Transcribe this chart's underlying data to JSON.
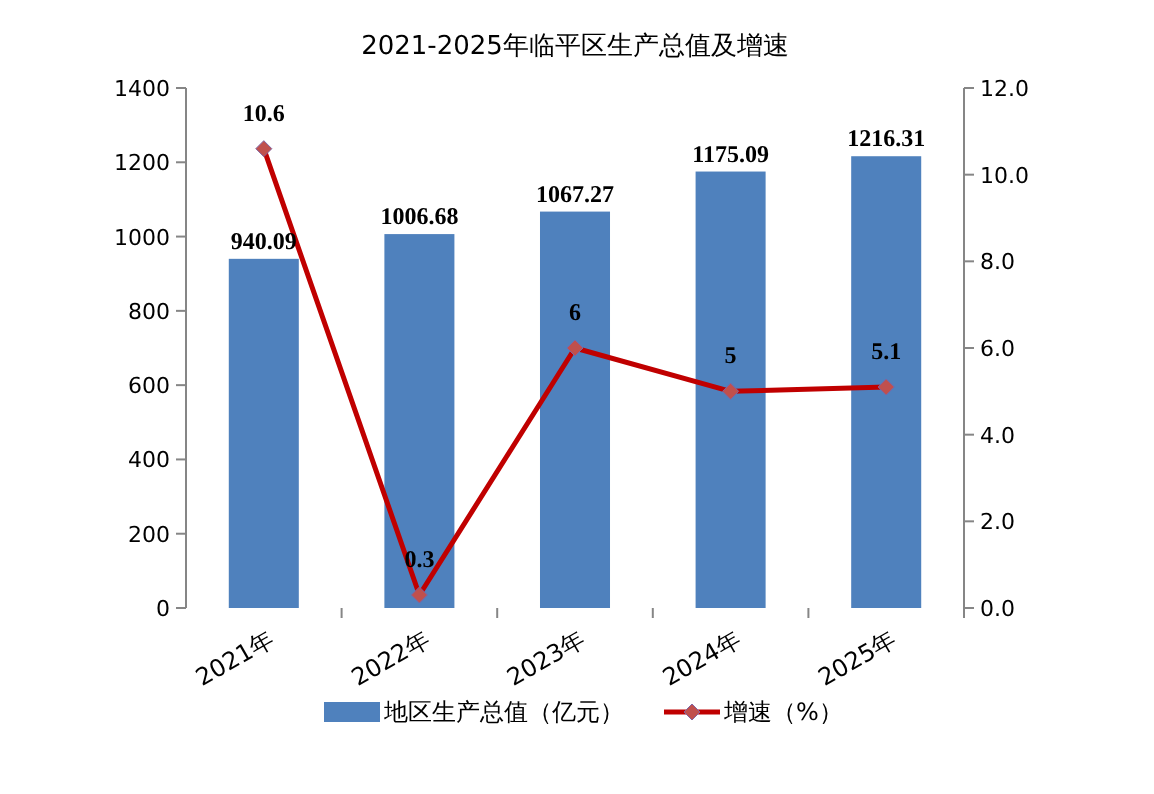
{
  "chart_data": {
    "type": "bar",
    "title": "2021-2025年临平区生产总值及增速",
    "categories": [
      "2021年",
      "2022年",
      "2023年",
      "2024年",
      "2025年"
    ],
    "series": [
      {
        "name": "地区生产总值（亿元）",
        "color": "#4f81bd",
        "values": [
          940.09,
          1006.68,
          1067.27,
          1175.09,
          1216.31
        ]
      },
      {
        "name": "增速（%）",
        "type": "line",
        "axis": "y2",
        "color": "#c00000",
        "marker": "diamond",
        "values": [
          10.6,
          0.3,
          6,
          5,
          5.1
        ]
      }
    ],
    "ylim": [
      0,
      1400
    ],
    "yticks": [
      0,
      200,
      400,
      600,
      800,
      1000,
      1200,
      1400
    ],
    "y2lim": [
      0,
      12
    ],
    "y2ticks": [
      {
        "value": 0,
        "label": "0.0"
      },
      {
        "value": 2,
        "label": "2.0"
      },
      {
        "value": 4,
        "label": "4.0"
      },
      {
        "value": 6,
        "label": "6.0"
      },
      {
        "value": 8,
        "label": "8.0"
      },
      {
        "value": 10,
        "label": "10.0"
      },
      {
        "value": 12,
        "label": "12.0"
      }
    ],
    "data_labels": true,
    "legend": "bottom",
    "grid": false
  }
}
